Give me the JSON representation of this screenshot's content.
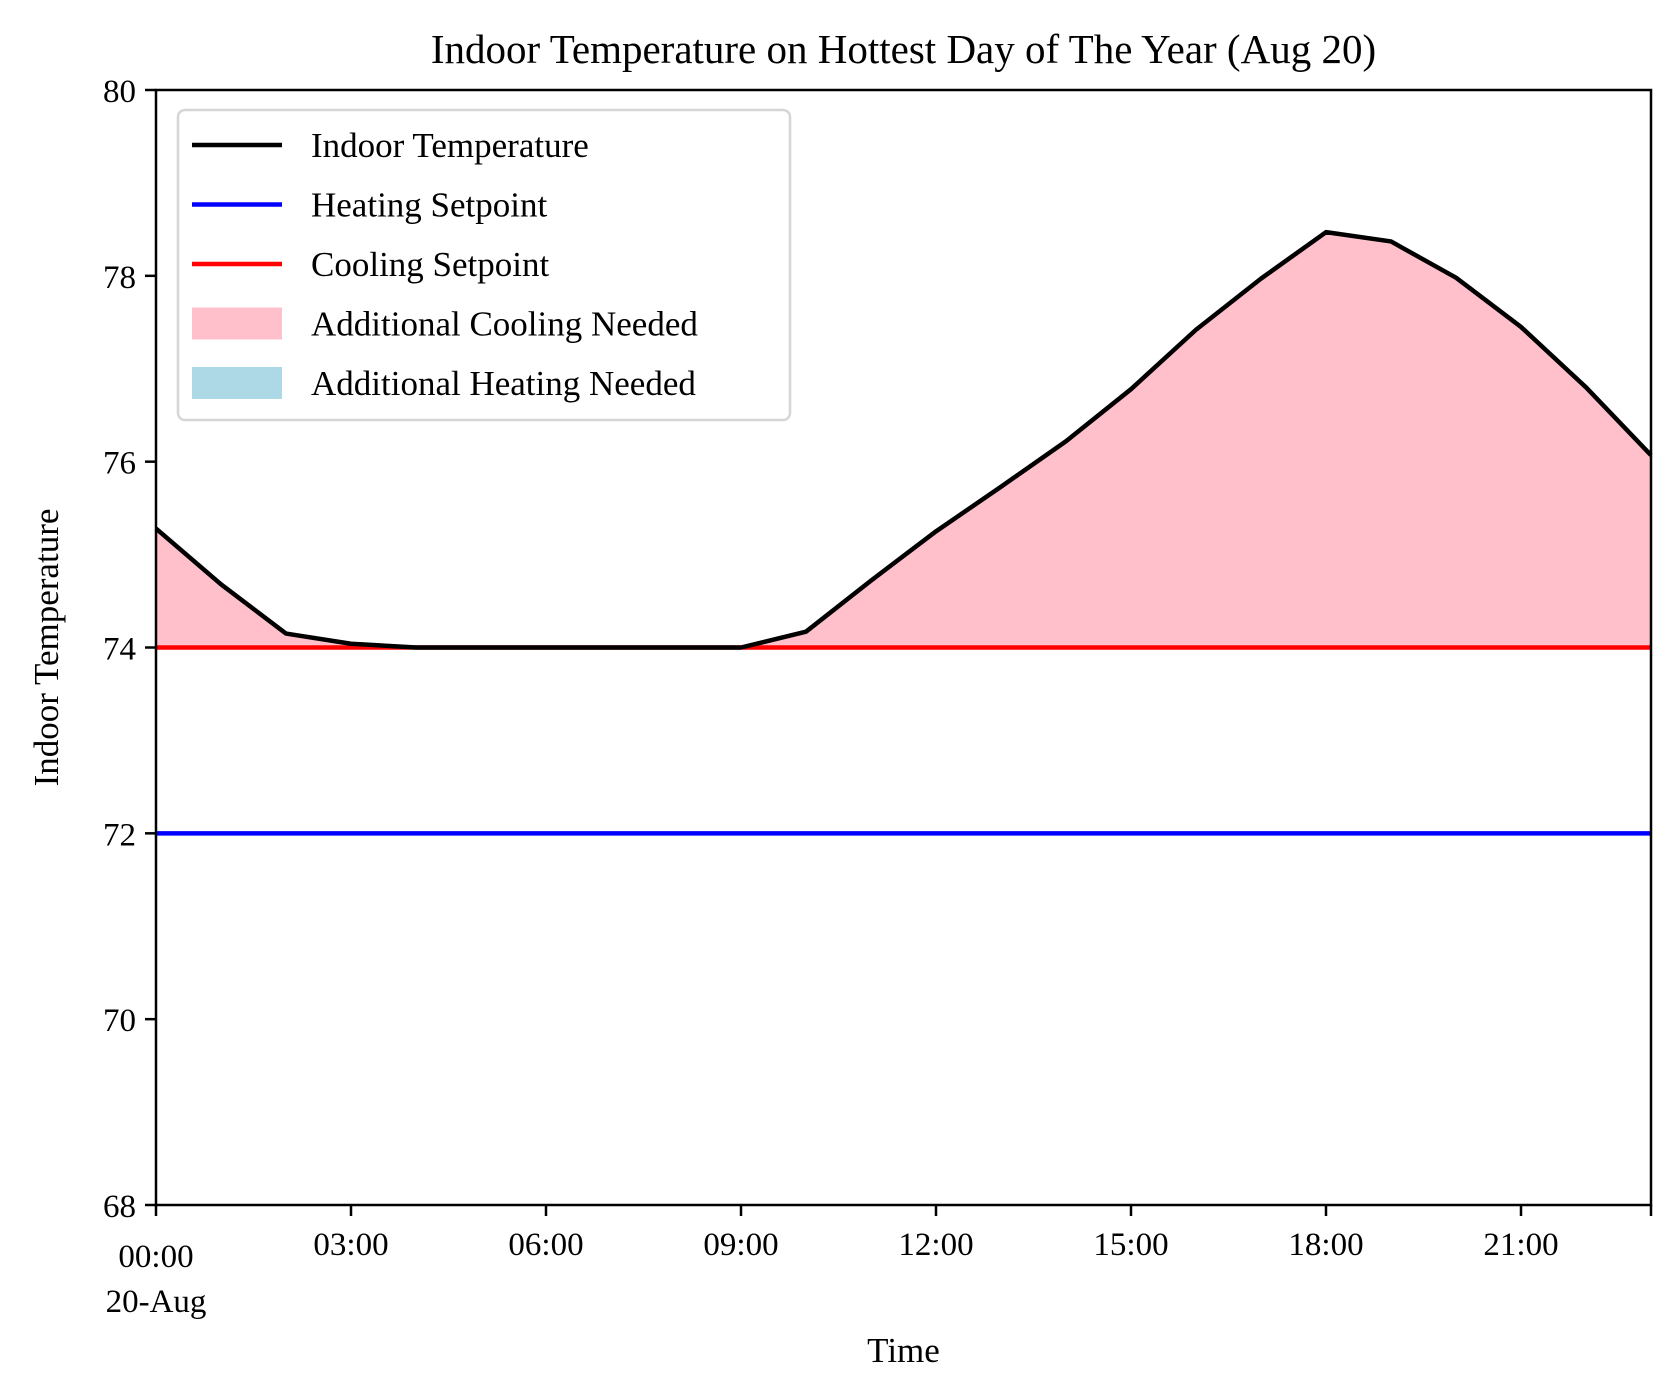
{
  "chart_data": {
    "type": "line",
    "title": "Indoor Temperature on Hottest Day of The Year (Aug 20)",
    "xlabel": "Time",
    "ylabel": "Indoor Temperature",
    "ylim": [
      68,
      80
    ],
    "xlim": [
      "20-Aug 00:00",
      "20-Aug 23:00"
    ],
    "x_tick_labels": [
      "00:00",
      "03:00",
      "06:00",
      "09:00",
      "12:00",
      "15:00",
      "18:00",
      "21:00"
    ],
    "x_tick_sublabel": "20-Aug",
    "y_ticks": [
      68,
      70,
      72,
      74,
      76,
      78,
      80
    ],
    "x": [
      "00:00",
      "01:00",
      "02:00",
      "03:00",
      "04:00",
      "05:00",
      "06:00",
      "07:00",
      "08:00",
      "09:00",
      "10:00",
      "11:00",
      "12:00",
      "13:00",
      "14:00",
      "15:00",
      "16:00",
      "17:00",
      "18:00",
      "19:00",
      "20:00",
      "21:00",
      "22:00",
      "23:00"
    ],
    "series": [
      {
        "name": "Indoor Temperature",
        "color": "#000000",
        "values": [
          75.28,
          74.68,
          74.15,
          74.04,
          74.0,
          74.0,
          74.0,
          74.0,
          74.0,
          74.0,
          74.17,
          74.72,
          75.25,
          75.73,
          76.22,
          76.78,
          77.42,
          77.97,
          78.47,
          78.37,
          77.98,
          77.45,
          76.8,
          76.07
        ]
      },
      {
        "name": "Heating Setpoint",
        "color": "#0000ff",
        "constant": 72
      },
      {
        "name": "Cooling Setpoint",
        "color": "#ff0000",
        "constant": 74
      }
    ],
    "fills": [
      {
        "name": "Additional Cooling Needed",
        "color": "#ffc0cb",
        "between": [
          "Indoor Temperature",
          "Cooling Setpoint"
        ],
        "where": "above"
      },
      {
        "name": "Additional Heating Needed",
        "color": "#add8e6",
        "between": [
          "Indoor Temperature",
          "Heating Setpoint"
        ],
        "where": "below"
      }
    ],
    "legend": {
      "placement": "upper-left",
      "entries": [
        {
          "label": "Indoor Temperature",
          "kind": "line",
          "color": "#000000"
        },
        {
          "label": "Heating Setpoint",
          "kind": "line",
          "color": "#0000ff"
        },
        {
          "label": "Cooling Setpoint",
          "kind": "line",
          "color": "#ff0000"
        },
        {
          "label": "Additional Cooling Needed",
          "kind": "patch",
          "color": "#ffc0cb"
        },
        {
          "label": "Additional Heating Needed",
          "kind": "patch",
          "color": "#add8e6"
        }
      ]
    },
    "grid": false
  }
}
